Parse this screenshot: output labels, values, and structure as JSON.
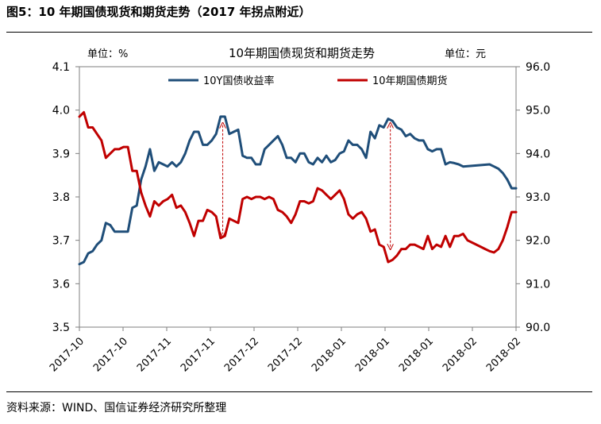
{
  "figure_title": "图5：10 年期国债现货和期货走势（2017 年拐点附近）",
  "source_note": "资料来源：WIND、国信证券经济研究所整理",
  "colors": {
    "yield": "#1f4e79",
    "futures": "#c00000",
    "arrow": "#c00000"
  },
  "chart_data": {
    "type": "line",
    "title": "10年期国债现货和期货走势",
    "left_unit": "单位：%",
    "right_unit": "单位：元",
    "legend": [
      "10Y国债收益率",
      "10年期国债期货"
    ],
    "left_axis": {
      "min": 3.5,
      "max": 4.1,
      "ticks": [
        "3.5",
        "3.6",
        "3.7",
        "3.8",
        "3.9",
        "4.0",
        "4.1"
      ]
    },
    "right_axis": {
      "min": 90.0,
      "max": 96.0,
      "ticks": [
        "90.0",
        "91.0",
        "92.0",
        "93.0",
        "94.0",
        "95.0",
        "96.0"
      ]
    },
    "x_tick_labels": [
      "2017-10",
      "2017-10",
      "2017-11",
      "2017-11",
      "2017-12",
      "2017-12",
      "2018-01",
      "2018-01",
      "2018-01",
      "2018-02",
      "2018-02"
    ],
    "n_points": 100,
    "series": [
      {
        "name": "10Y国债收益率",
        "axis": "left",
        "values": [
          [
            0,
            3.645
          ],
          [
            1,
            3.65
          ],
          [
            2,
            3.67
          ],
          [
            3,
            3.675
          ],
          [
            4,
            3.69
          ],
          [
            5,
            3.7
          ],
          [
            6,
            3.74
          ],
          [
            7,
            3.735
          ],
          [
            8,
            3.72
          ],
          [
            9,
            3.72
          ],
          [
            10,
            3.72
          ],
          [
            11,
            3.72
          ],
          [
            12,
            3.775
          ],
          [
            13,
            3.78
          ],
          [
            14,
            3.84
          ],
          [
            15,
            3.87
          ],
          [
            16,
            3.91
          ],
          [
            17,
            3.86
          ],
          [
            18,
            3.88
          ],
          [
            19,
            3.875
          ],
          [
            20,
            3.87
          ],
          [
            21,
            3.88
          ],
          [
            22,
            3.87
          ],
          [
            23,
            3.88
          ],
          [
            24,
            3.9
          ],
          [
            25,
            3.93
          ],
          [
            26,
            3.95
          ],
          [
            27,
            3.95
          ],
          [
            28,
            3.92
          ],
          [
            29,
            3.92
          ],
          [
            30,
            3.93
          ],
          [
            31,
            3.945
          ],
          [
            32,
            3.985
          ],
          [
            33,
            3.985
          ],
          [
            34,
            3.945
          ],
          [
            35,
            3.95
          ],
          [
            36,
            3.955
          ],
          [
            37,
            3.895
          ],
          [
            38,
            3.89
          ],
          [
            39,
            3.89
          ],
          [
            40,
            3.875
          ],
          [
            41,
            3.875
          ],
          [
            42,
            3.91
          ],
          [
            43,
            3.92
          ],
          [
            44,
            3.93
          ],
          [
            45,
            3.94
          ],
          [
            46,
            3.92
          ],
          [
            47,
            3.89
          ],
          [
            48,
            3.89
          ],
          [
            49,
            3.88
          ],
          [
            50,
            3.9
          ],
          [
            51,
            3.9
          ],
          [
            52,
            3.88
          ],
          [
            53,
            3.875
          ],
          [
            54,
            3.89
          ],
          [
            55,
            3.88
          ],
          [
            56,
            3.895
          ],
          [
            57,
            3.88
          ],
          [
            58,
            3.885
          ],
          [
            59,
            3.9
          ],
          [
            60,
            3.905
          ],
          [
            61,
            3.93
          ],
          [
            62,
            3.92
          ],
          [
            63,
            3.92
          ],
          [
            64,
            3.91
          ],
          [
            65,
            3.89
          ],
          [
            66,
            3.95
          ],
          [
            67,
            3.935
          ],
          [
            68,
            3.965
          ],
          [
            69,
            3.96
          ],
          [
            70,
            3.98
          ],
          [
            71,
            3.975
          ],
          [
            72,
            3.96
          ],
          [
            73,
            3.955
          ],
          [
            74,
            3.94
          ],
          [
            75,
            3.945
          ],
          [
            76,
            3.935
          ],
          [
            77,
            3.93
          ],
          [
            78,
            3.93
          ],
          [
            79,
            3.91
          ],
          [
            80,
            3.905
          ],
          [
            81,
            3.91
          ],
          [
            82,
            3.91
          ],
          [
            83,
            3.875
          ],
          [
            84,
            3.88
          ],
          [
            85,
            3.878
          ],
          [
            86,
            3.875
          ],
          [
            87,
            3.87
          ],
          [
            93,
            3.875
          ],
          [
            94,
            3.87
          ],
          [
            95,
            3.865
          ],
          [
            96,
            3.855
          ],
          [
            97,
            3.84
          ],
          [
            98,
            3.82
          ],
          [
            99,
            3.82
          ]
        ]
      },
      {
        "name": "10年期国债期货",
        "axis": "right",
        "values": [
          [
            0,
            94.85
          ],
          [
            1,
            94.95
          ],
          [
            2,
            94.6
          ],
          [
            3,
            94.6
          ],
          [
            4,
            94.45
          ],
          [
            5,
            94.3
          ],
          [
            6,
            93.9
          ],
          [
            7,
            94.0
          ],
          [
            8,
            94.1
          ],
          [
            9,
            94.1
          ],
          [
            10,
            94.15
          ],
          [
            11,
            94.15
          ],
          [
            12,
            93.6
          ],
          [
            13,
            93.6
          ],
          [
            14,
            93.1
          ],
          [
            15,
            92.8
          ],
          [
            16,
            92.55
          ],
          [
            17,
            92.9
          ],
          [
            18,
            92.8
          ],
          [
            19,
            92.9
          ],
          [
            20,
            92.95
          ],
          [
            21,
            93.05
          ],
          [
            22,
            92.75
          ],
          [
            23,
            92.8
          ],
          [
            24,
            92.65
          ],
          [
            25,
            92.4
          ],
          [
            26,
            92.1
          ],
          [
            27,
            92.45
          ],
          [
            28,
            92.45
          ],
          [
            29,
            92.7
          ],
          [
            30,
            92.65
          ],
          [
            31,
            92.55
          ],
          [
            32,
            92.05
          ],
          [
            33,
            92.1
          ],
          [
            34,
            92.5
          ],
          [
            35,
            92.45
          ],
          [
            36,
            92.4
          ],
          [
            37,
            92.95
          ],
          [
            38,
            93.0
          ],
          [
            39,
            92.95
          ],
          [
            40,
            93.0
          ],
          [
            41,
            93.0
          ],
          [
            42,
            92.95
          ],
          [
            43,
            93.0
          ],
          [
            44,
            92.95
          ],
          [
            45,
            92.7
          ],
          [
            46,
            92.65
          ],
          [
            47,
            92.55
          ],
          [
            48,
            92.4
          ],
          [
            49,
            92.6
          ],
          [
            50,
            92.9
          ],
          [
            51,
            92.9
          ],
          [
            52,
            92.85
          ],
          [
            53,
            92.9
          ],
          [
            54,
            93.2
          ],
          [
            55,
            93.15
          ],
          [
            56,
            93.05
          ],
          [
            57,
            92.95
          ],
          [
            58,
            93.05
          ],
          [
            59,
            93.15
          ],
          [
            60,
            92.95
          ],
          [
            61,
            92.6
          ],
          [
            62,
            92.5
          ],
          [
            63,
            92.6
          ],
          [
            64,
            92.65
          ],
          [
            65,
            92.5
          ],
          [
            66,
            92.2
          ],
          [
            67,
            92.25
          ],
          [
            68,
            91.9
          ],
          [
            69,
            91.85
          ],
          [
            70,
            91.5
          ],
          [
            71,
            91.55
          ],
          [
            72,
            91.65
          ],
          [
            73,
            91.8
          ],
          [
            74,
            91.8
          ],
          [
            75,
            91.9
          ],
          [
            76,
            91.9
          ],
          [
            77,
            91.85
          ],
          [
            78,
            91.8
          ],
          [
            79,
            92.1
          ],
          [
            80,
            91.8
          ],
          [
            81,
            91.9
          ],
          [
            82,
            91.85
          ],
          [
            83,
            92.1
          ],
          [
            84,
            91.85
          ],
          [
            85,
            92.1
          ],
          [
            86,
            92.1
          ],
          [
            87,
            92.15
          ],
          [
            88,
            92.0
          ],
          [
            89,
            91.95
          ],
          [
            90,
            91.9
          ],
          [
            91,
            91.85
          ],
          [
            92,
            91.8
          ],
          [
            93,
            91.75
          ],
          [
            94,
            91.72
          ],
          [
            95,
            91.8
          ],
          [
            96,
            92.0
          ],
          [
            97,
            92.3
          ],
          [
            98,
            92.65
          ],
          [
            99,
            92.65
          ]
        ]
      }
    ],
    "annotations": [
      {
        "type": "double-arrow",
        "index": 32.5,
        "from_left": 3.965,
        "to_left": 3.715
      },
      {
        "type": "double-arrow",
        "index": 70.5,
        "from_left": 3.965,
        "to_left": 3.685
      }
    ]
  }
}
